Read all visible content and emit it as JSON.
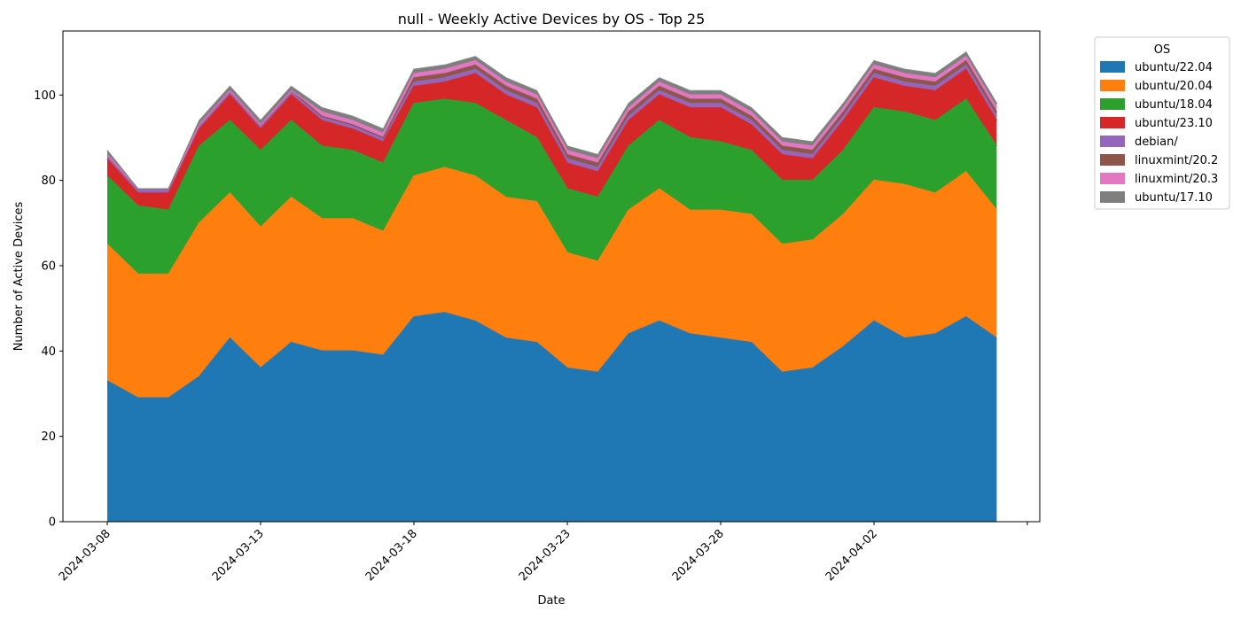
{
  "chart_data": {
    "type": "area",
    "stacked": true,
    "title": "null - Weekly Active Devices by OS - Top 25",
    "xlabel": "Date",
    "ylabel": "Number of Active Devices",
    "ylim": [
      0,
      115
    ],
    "y_ticks": [
      0,
      20,
      40,
      60,
      80,
      100
    ],
    "x_tick_labels": [
      "2024-03-08",
      "2024-03-13",
      "2024-03-18",
      "2024-03-23",
      "2024-03-28",
      "2024-04-02"
    ],
    "grid": false,
    "legend_title": "OS",
    "legend_position": "outside-top-right",
    "x": [
      "2024-03-08",
      "2024-03-09",
      "2024-03-10",
      "2024-03-11",
      "2024-03-12",
      "2024-03-13",
      "2024-03-14",
      "2024-03-15",
      "2024-03-16",
      "2024-03-17",
      "2024-03-18",
      "2024-03-19",
      "2024-03-20",
      "2024-03-21",
      "2024-03-22",
      "2024-03-23",
      "2024-03-24",
      "2024-03-25",
      "2024-03-26",
      "2024-03-27",
      "2024-03-28",
      "2024-03-29",
      "2024-03-30",
      "2024-03-31",
      "2024-04-01",
      "2024-04-02",
      "2024-04-03",
      "2024-04-04",
      "2024-04-05",
      "2024-04-06"
    ],
    "series": [
      {
        "name": "ubuntu/22.04",
        "color": "#1f77b4",
        "values": [
          33,
          29,
          29,
          34,
          43,
          36,
          42,
          40,
          40,
          39,
          48,
          49,
          47,
          43,
          42,
          36,
          35,
          44,
          47,
          44,
          43,
          42,
          35,
          36,
          41,
          47,
          43,
          44,
          48,
          43
        ]
      },
      {
        "name": "ubuntu/20.04",
        "color": "#ff7f0e",
        "values": [
          32,
          29,
          29,
          36,
          34,
          33,
          34,
          31,
          31,
          29,
          33,
          34,
          34,
          33,
          33,
          27,
          26,
          29,
          31,
          29,
          30,
          30,
          30,
          30,
          31,
          33,
          36,
          33,
          34,
          30
        ]
      },
      {
        "name": "ubuntu/18.04",
        "color": "#2ca02c",
        "values": [
          16,
          16,
          15,
          18,
          17,
          18,
          18,
          17,
          16,
          16,
          17,
          16,
          17,
          18,
          15,
          15,
          15,
          15,
          16,
          17,
          16,
          15,
          15,
          14,
          15,
          17,
          17,
          17,
          17,
          15
        ]
      },
      {
        "name": "ubuntu/23.10",
        "color": "#d62728",
        "values": [
          4,
          3,
          4,
          4,
          6,
          5,
          6,
          6,
          5,
          5,
          4,
          4,
          7,
          6,
          7,
          6,
          6,
          6,
          6,
          7,
          8,
          6,
          6,
          5,
          7,
          7,
          6,
          7,
          7,
          6
        ]
      },
      {
        "name": "debian/",
        "color": "#9467bd",
        "values": [
          1,
          1,
          1,
          1,
          1,
          1,
          1,
          1,
          1,
          1,
          1,
          1,
          1,
          1,
          1,
          1,
          1,
          1,
          1,
          1,
          1,
          1,
          1,
          1,
          1,
          1,
          1,
          1,
          1,
          1
        ]
      },
      {
        "name": "linuxmint/20.2",
        "color": "#8c564b",
        "values": [
          0,
          0,
          0,
          0,
          0,
          0,
          0,
          0,
          0,
          0,
          1,
          1,
          1,
          1,
          1,
          1,
          1,
          1,
          1,
          1,
          1,
          1,
          1,
          1,
          1,
          1,
          1,
          1,
          1,
          1
        ]
      },
      {
        "name": "linuxmint/20.3",
        "color": "#e377c2",
        "values": [
          0,
          0,
          0,
          0,
          0,
          0,
          0,
          1,
          1,
          1,
          1,
          1,
          1,
          1,
          1,
          1,
          1,
          1,
          1,
          1,
          1,
          1,
          1,
          1,
          1,
          1,
          1,
          1,
          1,
          1
        ]
      },
      {
        "name": "ubuntu/17.10",
        "color": "#7f7f7f",
        "values": [
          1,
          0,
          0,
          1,
          1,
          1,
          1,
          1,
          1,
          1,
          1,
          1,
          1,
          1,
          1,
          1,
          1,
          1,
          1,
          1,
          1,
          1,
          1,
          1,
          1,
          1,
          1,
          1,
          1,
          1
        ]
      }
    ]
  }
}
